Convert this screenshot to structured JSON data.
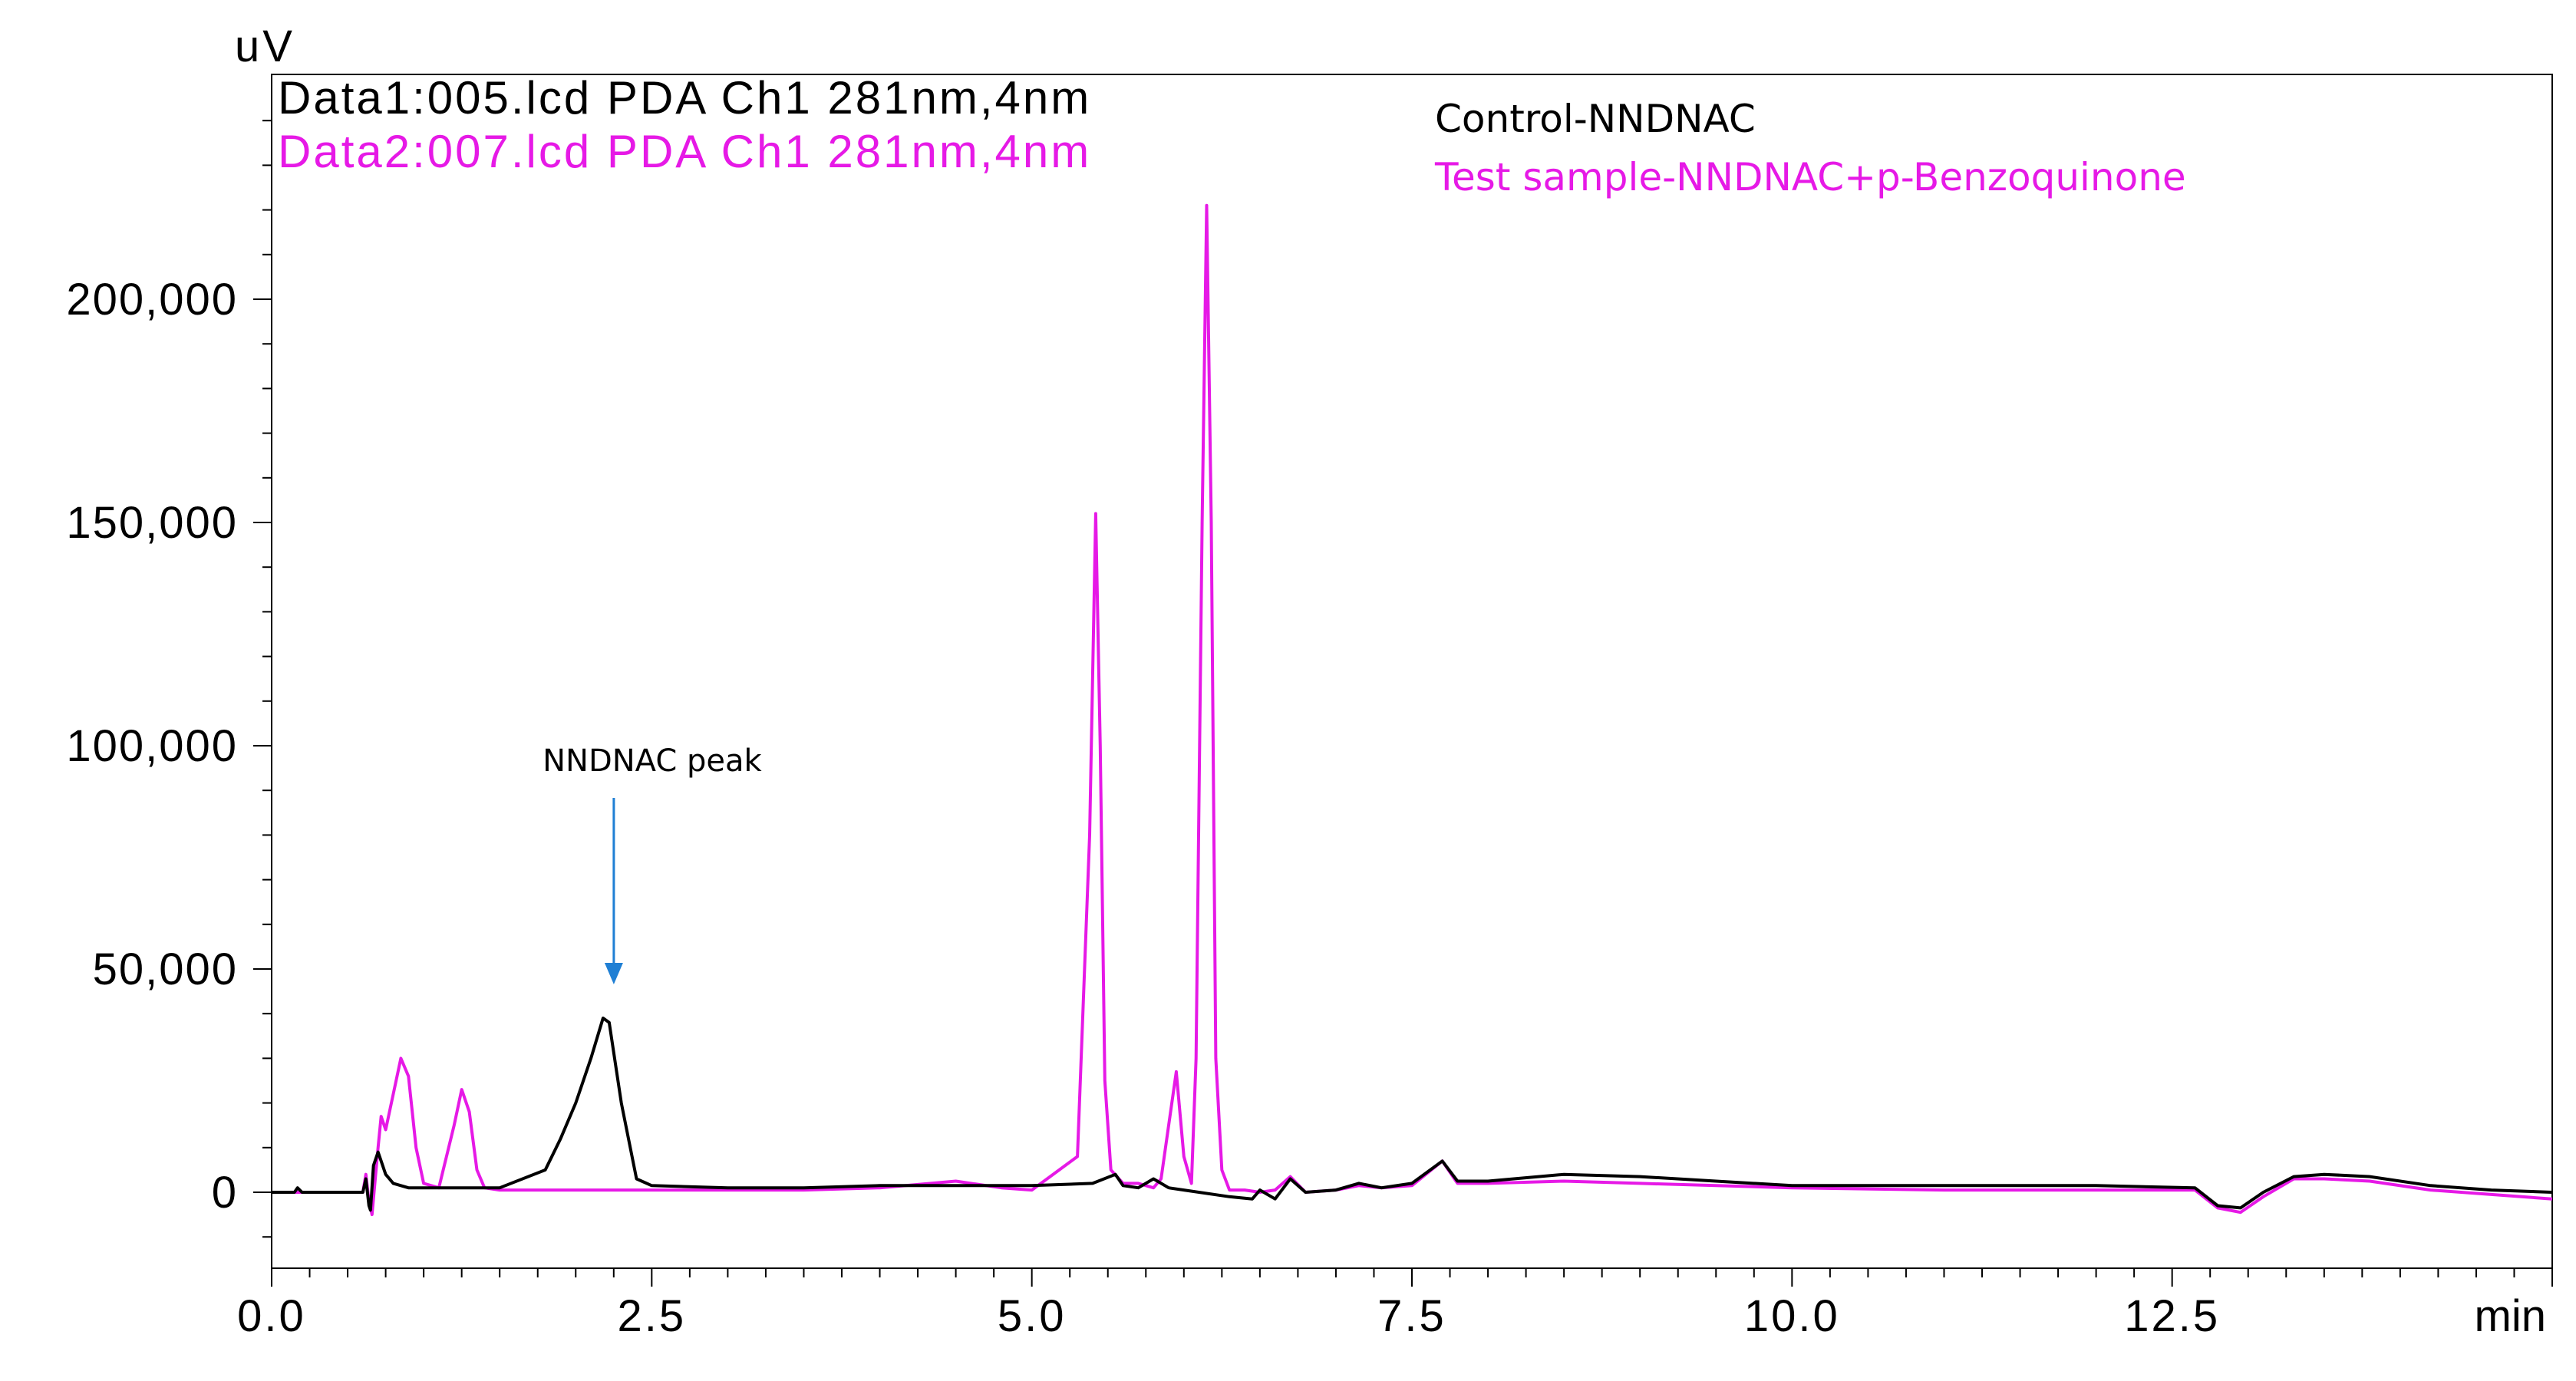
{
  "chart_data": {
    "type": "line",
    "ylabel": "uV",
    "xlabel": "min",
    "xlim": [
      0,
      15
    ],
    "ylim": [
      -17000,
      250000
    ],
    "x_ticks": [
      0.0,
      2.5,
      5.0,
      7.5,
      10.0,
      12.5
    ],
    "x_tick_labels": [
      "0.0",
      "2.5",
      "5.0",
      "7.5",
      "10.0",
      "12.5"
    ],
    "y_ticks": [
      0,
      50000,
      100000,
      150000,
      200000
    ],
    "y_tick_labels": [
      "0",
      "50,000",
      "100,000",
      "150,000",
      "200,000"
    ],
    "grid": false,
    "header_lines": [
      {
        "text": "Data1:005.lcd PDA Ch1 281nm,4nm",
        "color": "#000000"
      },
      {
        "text": "Data2:007.lcd PDA Ch1 281nm,4nm",
        "color": "#e619e6"
      }
    ],
    "legend_position": "top-right",
    "series": [
      {
        "name": "Control-NNDNAC",
        "color": "#000000",
        "x": [
          0.0,
          0.15,
          0.17,
          0.2,
          0.4,
          0.6,
          0.62,
          0.64,
          0.65,
          0.67,
          0.7,
          0.72,
          0.75,
          0.8,
          0.9,
          1.0,
          1.2,
          1.5,
          1.8,
          1.9,
          2.0,
          2.1,
          2.18,
          2.22,
          2.3,
          2.4,
          2.5,
          3.0,
          3.5,
          4.0,
          4.5,
          5.0,
          5.4,
          5.55,
          5.6,
          5.7,
          5.8,
          5.9,
          6.0,
          6.3,
          6.45,
          6.5,
          6.6,
          6.7,
          6.8,
          7.0,
          7.15,
          7.3,
          7.5,
          7.7,
          7.8,
          8.0,
          8.5,
          9.0,
          9.5,
          10.0,
          11.0,
          12.0,
          12.65,
          12.8,
          12.95,
          13.1,
          13.3,
          13.5,
          13.8,
          14.2,
          14.6,
          15.0
        ],
        "y": [
          0,
          0,
          1000,
          0,
          0,
          0,
          3000,
          -3000,
          -4000,
          6000,
          9000,
          7000,
          4000,
          2000,
          1000,
          1000,
          1000,
          1000,
          5000,
          12000,
          20000,
          30000,
          39000,
          38000,
          20000,
          3000,
          1500,
          1000,
          1000,
          1500,
          1500,
          1500,
          2000,
          4000,
          1500,
          1000,
          3000,
          1000,
          500,
          -1000,
          -1500,
          500,
          -1500,
          3000,
          0,
          500,
          2000,
          1000,
          2000,
          7000,
          2500,
          2500,
          4000,
          3500,
          2500,
          1500,
          1500,
          1500,
          1000,
          -3000,
          -3500,
          0,
          3500,
          4000,
          3500,
          1500,
          500,
          0
        ]
      },
      {
        "name": "Test sample-NNDNAC+p-Benzoquinone",
        "color": "#e619e6",
        "x": [
          0.0,
          0.2,
          0.4,
          0.6,
          0.62,
          0.64,
          0.66,
          0.7,
          0.72,
          0.75,
          0.8,
          0.85,
          0.9,
          0.95,
          1.0,
          1.1,
          1.2,
          1.25,
          1.3,
          1.35,
          1.4,
          1.5,
          2.0,
          2.5,
          3.0,
          3.5,
          4.0,
          4.5,
          4.8,
          5.0,
          5.3,
          5.38,
          5.42,
          5.45,
          5.48,
          5.52,
          5.6,
          5.7,
          5.8,
          5.85,
          5.9,
          5.95,
          6.0,
          6.05,
          6.08,
          6.12,
          6.15,
          6.18,
          6.21,
          6.25,
          6.3,
          6.4,
          6.5,
          6.6,
          6.7,
          6.8,
          7.0,
          7.15,
          7.3,
          7.5,
          7.7,
          7.8,
          8.0,
          8.5,
          9.0,
          9.5,
          10.0,
          11.0,
          12.0,
          12.65,
          12.8,
          12.95,
          13.1,
          13.3,
          13.5,
          13.8,
          14.2,
          14.6,
          15.0
        ],
        "y": [
          0,
          0,
          0,
          0,
          4000,
          -2000,
          -5000,
          10000,
          17000,
          14000,
          22000,
          30000,
          26000,
          10000,
          2000,
          1000,
          15000,
          23000,
          18000,
          5000,
          1000,
          500,
          500,
          500,
          500,
          500,
          1000,
          2500,
          1000,
          500,
          8000,
          80000,
          152000,
          100000,
          25000,
          5000,
          2000,
          2000,
          1000,
          3000,
          15000,
          27000,
          8000,
          2000,
          30000,
          150000,
          221000,
          150000,
          30000,
          5000,
          500,
          500,
          0,
          500,
          3500,
          0,
          500,
          1500,
          1000,
          1500,
          7000,
          2000,
          2000,
          2500,
          2000,
          1500,
          1000,
          500,
          500,
          500,
          -3500,
          -4500,
          -1000,
          3000,
          3000,
          2500,
          500,
          -500,
          -1500
        ]
      }
    ],
    "annotations": [
      {
        "text": "NNDNAC peak",
        "color": "#000000"
      }
    ],
    "arrow_color": "#1f7fd4"
  }
}
